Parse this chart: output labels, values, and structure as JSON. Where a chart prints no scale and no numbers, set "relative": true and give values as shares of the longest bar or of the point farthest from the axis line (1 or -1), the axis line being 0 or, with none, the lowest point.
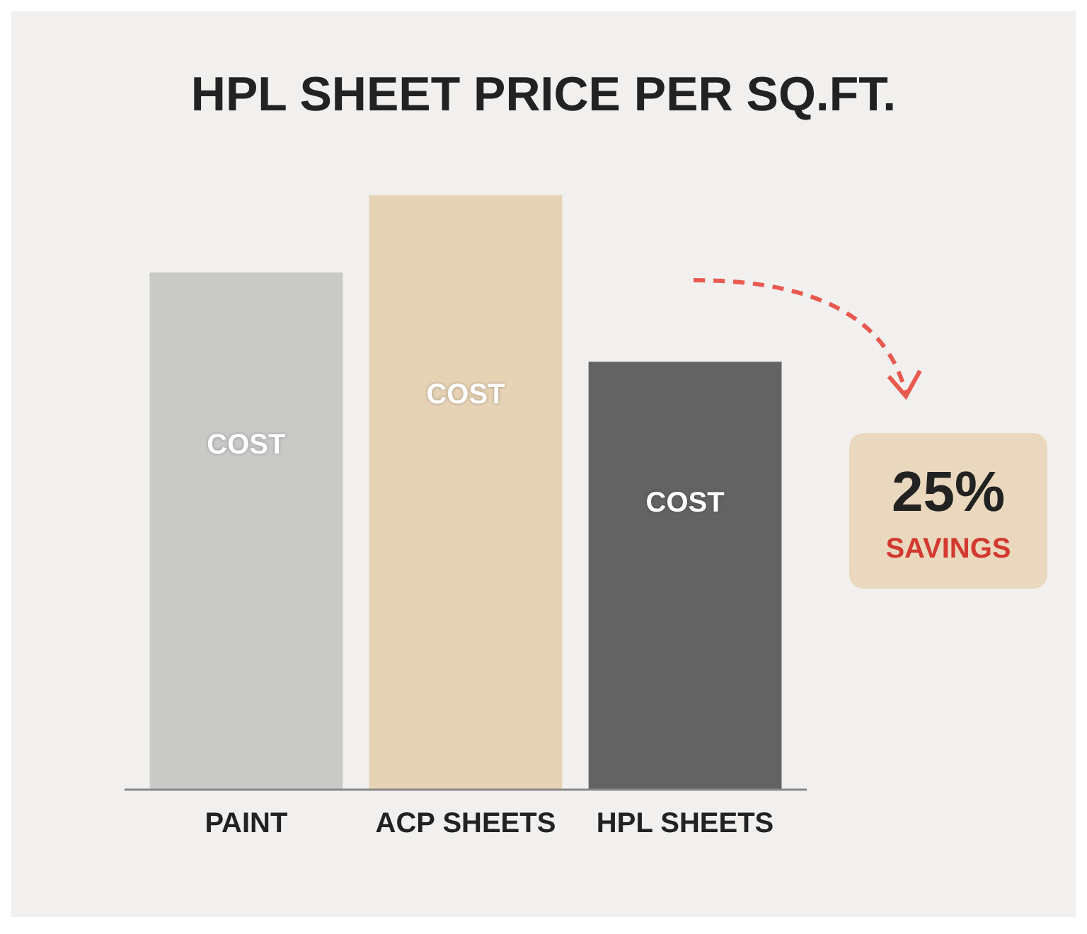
{
  "chart_data": {
    "type": "bar",
    "title": "HPL SHEET PRICE PER SQ.FT.",
    "categories": [
      "PAINT",
      "ACP SHEETS",
      "HPL SHEETS"
    ],
    "values": [
      0.87,
      1,
      0.72
    ],
    "colors": [
      "#c9c9c7",
      "#e6d2b4",
      "#626362"
    ],
    "relative": true,
    "annotations": [
      "COST",
      "COST",
      "COST",
      "25%",
      "SAVINGS"
    ]
  }
}
